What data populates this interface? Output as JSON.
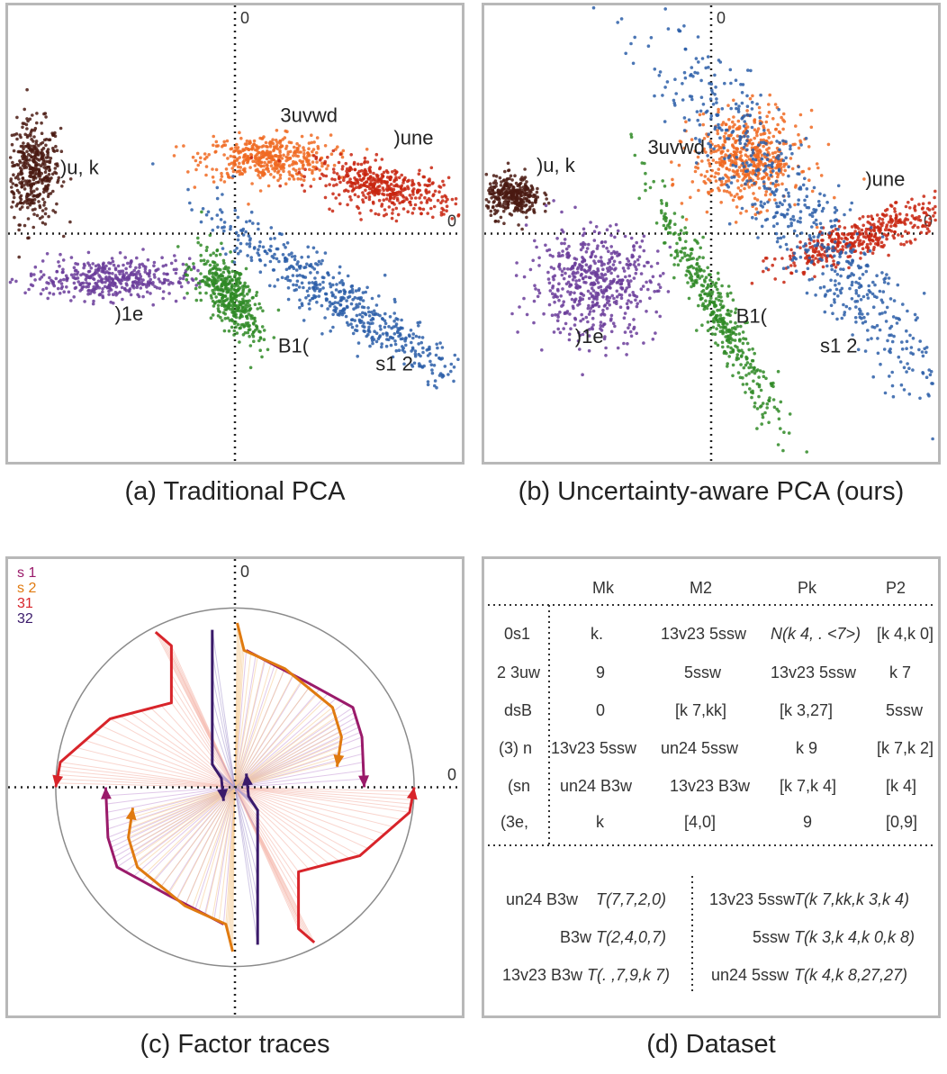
{
  "captions": {
    "a": "(a) Traditional PCA",
    "b": "(b) Uncertainty-aware PCA (ours)",
    "c": "(c) Factor traces",
    "d": "(d) Dataset"
  },
  "chart_data": [
    {
      "id": "a",
      "type": "scatter",
      "title": "",
      "axis_labels": {
        "x_zero": "0",
        "y_zero": "0"
      },
      "xlim": [
        -1,
        1
      ],
      "ylim": [
        -1,
        1
      ],
      "clusters": [
        {
          "name": ")u, k",
          "color": "#4a1a12",
          "cx": -0.89,
          "cy": 0.27,
          "sx": 0.06,
          "sy": 0.11,
          "rot": 0,
          "n": 420
        },
        {
          "name": "3uvwd",
          "color": "#f06a22",
          "cx": 0.14,
          "cy": 0.33,
          "sx": 0.14,
          "sy": 0.05,
          "rot": 0,
          "n": 420
        },
        {
          "name": ")une",
          "color": "#c8240f",
          "cx": 0.66,
          "cy": 0.2,
          "sx": 0.16,
          "sy": 0.05,
          "rot": -12,
          "n": 420
        },
        {
          "name": ")1e",
          "color": "#6a3c9a",
          "cx": -0.56,
          "cy": -0.2,
          "sx": 0.18,
          "sy": 0.045,
          "rot": 0,
          "n": 420
        },
        {
          "name": "B1(",
          "color": "#2f8a26",
          "cx": -0.02,
          "cy": -0.27,
          "sx": 0.11,
          "sy": 0.05,
          "rot": -55,
          "n": 420
        },
        {
          "name": "s1 2",
          "color": "#2b5ea8",
          "cx": 0.45,
          "cy": -0.28,
          "sx": 0.34,
          "sy": 0.055,
          "rot": -33,
          "n": 520
        }
      ],
      "labels": [
        {
          "text": ")u, k",
          "x": -0.77,
          "y": 0.26
        },
        {
          "text": "3uvwd",
          "x": 0.2,
          "y": 0.49
        },
        {
          "text": ")une",
          "x": 0.7,
          "y": 0.39
        },
        {
          "text": ")1e",
          "x": -0.53,
          "y": -0.38
        },
        {
          "text": "B1(",
          "x": 0.19,
          "y": -0.52
        },
        {
          "text": "s1 2",
          "x": 0.62,
          "y": -0.6
        }
      ]
    },
    {
      "id": "b",
      "type": "scatter",
      "title": "",
      "axis_labels": {
        "x_zero": "0",
        "y_zero": "0"
      },
      "xlim": [
        -1,
        1
      ],
      "ylim": [
        -1,
        1
      ],
      "clusters": [
        {
          "name": ")u, k",
          "color": "#4a1a12",
          "cx": -0.87,
          "cy": 0.16,
          "sx": 0.06,
          "sy": 0.045,
          "rot": 0,
          "n": 320
        },
        {
          "name": "3uvwd",
          "color": "#f06a22",
          "cx": 0.16,
          "cy": 0.33,
          "sx": 0.12,
          "sy": 0.1,
          "rot": 0,
          "n": 520
        },
        {
          "name": ")une",
          "color": "#c8240f",
          "cx": 0.7,
          "cy": 0.0,
          "sx": 0.22,
          "sy": 0.04,
          "rot": 20,
          "n": 420
        },
        {
          "name": ")1e",
          "color": "#6a3c9a",
          "cx": -0.52,
          "cy": -0.22,
          "sx": 0.14,
          "sy": 0.12,
          "rot": 0,
          "n": 520
        },
        {
          "name": "B1(",
          "color": "#2f8a26",
          "cx": 0.03,
          "cy": -0.35,
          "sx": 0.29,
          "sy": 0.035,
          "rot": -62,
          "n": 420
        },
        {
          "name": "s1 2",
          "color": "#2b5ea8",
          "cx": 0.42,
          "cy": 0.04,
          "sx": 0.62,
          "sy": 0.09,
          "rot": -52,
          "n": 680
        }
      ],
      "labels": [
        {
          "text": ")u, k",
          "x": -0.77,
          "y": 0.27
        },
        {
          "text": "3uvwd",
          "x": -0.28,
          "y": 0.35
        },
        {
          "text": ")une",
          "x": 0.68,
          "y": 0.21
        },
        {
          "text": ")1e",
          "x": -0.6,
          "y": -0.48
        },
        {
          "text": "B1(",
          "x": 0.11,
          "y": -0.39
        },
        {
          "text": "s1 2",
          "x": 0.48,
          "y": -0.52
        }
      ]
    },
    {
      "id": "c",
      "type": "line",
      "title": "",
      "axis_labels": {
        "x_zero": "0",
        "y_zero": "0"
      },
      "legend": [
        {
          "text": "s 1",
          "color": "#9a1a6a"
        },
        {
          "text": "s 2",
          "color": "#e07a10"
        },
        {
          "text": "31",
          "color": "#d8242a"
        },
        {
          "text": "32",
          "color": "#3a1a6a"
        }
      ],
      "circle_radius": 0.79,
      "traces": [
        {
          "name": "s 1",
          "color": "#9a1a6a",
          "fill": "#c79ad7",
          "paths": [
            [
              [
                0.05,
                0.6
              ],
              [
                0.3,
                0.47
              ],
              [
                0.52,
                0.35
              ],
              [
                0.56,
                0.22
              ],
              [
                0.57,
                0.0
              ]
            ],
            [
              [
                -0.05,
                -0.6
              ],
              [
                -0.3,
                -0.47
              ],
              [
                -0.52,
                -0.35
              ],
              [
                -0.56,
                -0.22
              ],
              [
                -0.57,
                0.0
              ]
            ]
          ]
        },
        {
          "name": "s 2",
          "color": "#e07a10",
          "fill": "#f6c98d",
          "paths": [
            [
              [
                0.01,
                0.72
              ],
              [
                0.04,
                0.6
              ],
              [
                0.22,
                0.52
              ],
              [
                0.43,
                0.35
              ],
              [
                0.47,
                0.22
              ],
              [
                0.45,
                0.09
              ]
            ],
            [
              [
                -0.01,
                -0.72
              ],
              [
                -0.04,
                -0.6
              ],
              [
                -0.22,
                -0.52
              ],
              [
                -0.43,
                -0.35
              ],
              [
                -0.47,
                -0.22
              ],
              [
                -0.45,
                -0.09
              ]
            ]
          ]
        },
        {
          "name": "31",
          "color": "#d8242a",
          "fill": "#f4b2a6",
          "paths": [
            [
              [
                -0.35,
                0.68
              ],
              [
                -0.28,
                0.62
              ],
              [
                -0.28,
                0.37
              ],
              [
                -0.55,
                0.3
              ],
              [
                -0.77,
                0.11
              ],
              [
                -0.79,
                0.0
              ]
            ],
            [
              [
                0.35,
                -0.68
              ],
              [
                0.28,
                -0.62
              ],
              [
                0.28,
                -0.37
              ],
              [
                0.55,
                -0.3
              ],
              [
                0.77,
                -0.11
              ],
              [
                0.79,
                0.0
              ]
            ]
          ]
        },
        {
          "name": "32",
          "color": "#3a1a6a",
          "fill": "#a99ad0",
          "paths": [
            [
              [
                -0.1,
                0.69
              ],
              [
                -0.1,
                0.1
              ],
              [
                -0.06,
                0.04
              ],
              [
                -0.05,
                -0.06
              ]
            ],
            [
              [
                0.1,
                -0.69
              ],
              [
                0.1,
                -0.1
              ],
              [
                0.06,
                -0.04
              ],
              [
                0.05,
                0.06
              ]
            ]
          ]
        }
      ]
    }
  ],
  "table": {
    "headers": [
      "Mk",
      "M2",
      "Pk",
      "P2"
    ],
    "rows": [
      {
        "label": "0s1",
        "cells": [
          "k.",
          "13v23 5ssw",
          "N(k 4, .  <7>)",
          "[k 4,k 0]"
        ]
      },
      {
        "label": "2 3uw",
        "cells": [
          "9",
          "5ssw",
          "13v23 5ssw",
          "k 7"
        ]
      },
      {
        "label": "dsB",
        "cells": [
          "0",
          "[k 7,kk]",
          "[k 3,27]",
          "5ssw"
        ]
      },
      {
        "label": "(3) n",
        "cells": [
          "13v23 5ssw",
          "un24 5ssw",
          "k 9",
          "[k 7,k 2]"
        ]
      },
      {
        "label": "(sn",
        "cells": [
          "un24 B3w",
          "13v23 B3w",
          "[k 7,k 4]",
          "[k 4]"
        ]
      },
      {
        "label": "(3e,",
        "cells": [
          "k",
          "[4,0]",
          "9",
          "[0,9]"
        ]
      }
    ],
    "footer": [
      {
        "left_key": "un24 B3w",
        "left_val": "T(7,7,2,0)",
        "right_key": "13v23 5ssw",
        "right_val": "T(k 7,kk,k 3,k 4)"
      },
      {
        "left_key": "B3w",
        "left_val": "T(2,4,0,7)",
        "right_key": "5ssw",
        "right_val": "T(k 3,k 4,k 0,k 8)"
      },
      {
        "left_key": "13v23 B3w",
        "left_val": "T(. ,7,9,k 7)",
        "right_key": "un24 5ssw",
        "right_val": "T(k 4,k 8,27,27)"
      }
    ]
  }
}
